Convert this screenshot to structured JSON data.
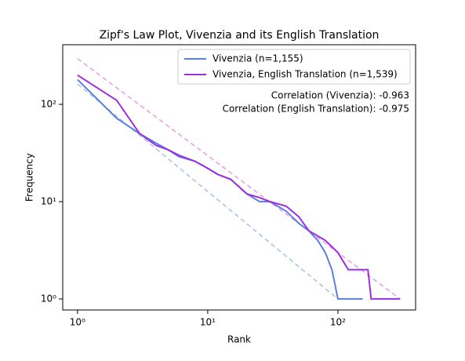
{
  "chart_data": {
    "type": "line",
    "title": "Zipf's Law Plot, Vivenzia and its English Translation",
    "x_label": "Rank",
    "y_label": "Frequency",
    "xscale": "log",
    "yscale": "log",
    "xlim": [
      0.77,
      395
    ],
    "ylim": [
      0.77,
      410
    ],
    "xticks": [
      {
        "value": 1,
        "label": "10⁰"
      },
      {
        "value": 10,
        "label": "10¹"
      },
      {
        "value": 100,
        "label": "10²"
      }
    ],
    "yticks": [
      {
        "value": 1,
        "label": "10⁰"
      },
      {
        "value": 10,
        "label": "10¹"
      },
      {
        "value": 100,
        "label": "10²"
      }
    ],
    "legend": "upper right",
    "series": [
      {
        "name": "Vivenzia (n=1,155)",
        "color": "#5a7fe0",
        "x": [
          1,
          2,
          3,
          4,
          5,
          6,
          8,
          10,
          12,
          15,
          20,
          25,
          30,
          40,
          50,
          60,
          70,
          80,
          90,
          100,
          155
        ],
        "values": [
          180,
          72,
          50,
          40,
          34,
          29,
          26,
          22,
          19,
          17,
          12,
          10,
          10,
          8,
          6,
          5,
          4,
          3,
          2,
          1,
          1
        ]
      },
      {
        "name": "Vivenzia, English Translation (n=1,539)",
        "color": "#9b30e0",
        "x": [
          1,
          2,
          3,
          4,
          5,
          6,
          8,
          10,
          12,
          15,
          20,
          25,
          30,
          40,
          50,
          60,
          80,
          100,
          120,
          170,
          180,
          300
        ],
        "values": [
          200,
          110,
          50,
          38,
          34,
          30,
          26,
          22,
          19,
          17,
          12,
          11,
          10,
          9,
          7,
          5,
          4,
          3,
          2,
          2,
          1,
          1
        ]
      }
    ],
    "fit_lines": [
      {
        "color": "#a8c0ec",
        "x": [
          1,
          100
        ],
        "values": [
          162,
          1
        ]
      },
      {
        "color": "#e79be8",
        "x": [
          1,
          300
        ],
        "values": [
          295,
          1
        ]
      }
    ],
    "annotations": [
      "Correlation (Vivenzia): -0.963",
      "Correlation (English Translation): -0.975"
    ]
  }
}
